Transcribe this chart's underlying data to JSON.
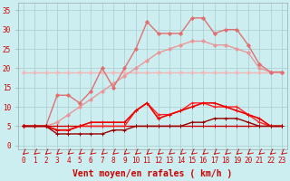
{
  "background_color": "#cceef0",
  "grid_color": "#aacccc",
  "xlabel": "Vent moyen/en rafales ( km/h )",
  "x_ticks": [
    0,
    1,
    2,
    3,
    4,
    5,
    6,
    7,
    8,
    9,
    10,
    11,
    12,
    13,
    14,
    15,
    16,
    17,
    18,
    19,
    20,
    21,
    22,
    23
  ],
  "ylim": [
    -1,
    37
  ],
  "yticks": [
    0,
    5,
    10,
    15,
    20,
    25,
    30,
    35
  ],
  "lines": [
    {
      "label": "flat_light",
      "color": "#f0b8b8",
      "lw": 1.0,
      "marker": "D",
      "ms": 2.0,
      "x": [
        0,
        1,
        2,
        3,
        4,
        5,
        6,
        7,
        8,
        9,
        10,
        11,
        12,
        13,
        14,
        15,
        16,
        17,
        18,
        19,
        20,
        21,
        22,
        23
      ],
      "y": [
        19,
        19,
        19,
        19,
        19,
        19,
        19,
        19,
        19,
        19,
        19,
        19,
        19,
        19,
        19,
        19,
        19,
        19,
        19,
        19,
        19,
        19,
        19,
        19
      ]
    },
    {
      "label": "rising_light",
      "color": "#e89898",
      "lw": 1.0,
      "marker": "D",
      "ms": 2.0,
      "x": [
        0,
        1,
        2,
        3,
        4,
        5,
        6,
        7,
        8,
        9,
        10,
        11,
        12,
        13,
        14,
        15,
        16,
        17,
        18,
        19,
        20,
        21,
        22,
        23
      ],
      "y": [
        5,
        5,
        5,
        6,
        8,
        10,
        12,
        14,
        16,
        18,
        20,
        22,
        24,
        25,
        26,
        27,
        27,
        26,
        26,
        25,
        24,
        20,
        19,
        19
      ]
    },
    {
      "label": "spiky_medium",
      "color": "#e07070",
      "lw": 1.0,
      "marker": "D",
      "ms": 2.0,
      "x": [
        0,
        1,
        2,
        3,
        4,
        5,
        6,
        7,
        8,
        9,
        10,
        11,
        12,
        13,
        14,
        15,
        16,
        17,
        18,
        19,
        20,
        21,
        22,
        23
      ],
      "y": [
        5,
        5,
        5,
        13,
        13,
        11,
        14,
        20,
        15,
        20,
        25,
        32,
        29,
        29,
        29,
        33,
        33,
        29,
        30,
        30,
        26,
        21,
        19,
        19
      ]
    },
    {
      "label": "flat_dark_red",
      "color": "#cc0000",
      "lw": 1.0,
      "marker": "+",
      "ms": 3.0,
      "x": [
        0,
        1,
        2,
        3,
        4,
        5,
        6,
        7,
        8,
        9,
        10,
        11,
        12,
        13,
        14,
        15,
        16,
        17,
        18,
        19,
        20,
        21,
        22,
        23
      ],
      "y": [
        5,
        5,
        5,
        5,
        5,
        5,
        5,
        5,
        5,
        5,
        5,
        5,
        5,
        5,
        5,
        5,
        5,
        5,
        5,
        5,
        5,
        5,
        5,
        5
      ]
    },
    {
      "label": "hump_red1",
      "color": "#ff2222",
      "lw": 1.0,
      "marker": "+",
      "ms": 3.0,
      "x": [
        0,
        1,
        2,
        3,
        4,
        5,
        6,
        7,
        8,
        9,
        10,
        11,
        12,
        13,
        14,
        15,
        16,
        17,
        18,
        19,
        20,
        21,
        22,
        23
      ],
      "y": [
        5,
        5,
        5,
        4,
        4,
        5,
        5,
        5,
        5,
        5,
        9,
        11,
        8,
        8,
        9,
        11,
        11,
        10,
        10,
        10,
        8,
        6,
        5,
        5
      ]
    },
    {
      "label": "hump_red2",
      "color": "#ee0000",
      "lw": 1.2,
      "marker": "+",
      "ms": 3.5,
      "x": [
        0,
        1,
        2,
        3,
        4,
        5,
        6,
        7,
        8,
        9,
        10,
        11,
        12,
        13,
        14,
        15,
        16,
        17,
        18,
        19,
        20,
        21,
        22,
        23
      ],
      "y": [
        5,
        5,
        5,
        4,
        4,
        5,
        6,
        6,
        6,
        6,
        9,
        11,
        7,
        8,
        9,
        10,
        11,
        11,
        10,
        9,
        8,
        7,
        5,
        5
      ]
    },
    {
      "label": "flat_very_dark",
      "color": "#990000",
      "lw": 1.0,
      "marker": "+",
      "ms": 2.5,
      "x": [
        0,
        1,
        2,
        3,
        4,
        5,
        6,
        7,
        8,
        9,
        10,
        11,
        12,
        13,
        14,
        15,
        16,
        17,
        18,
        19,
        20,
        21,
        22,
        23
      ],
      "y": [
        5,
        5,
        5,
        3,
        3,
        3,
        3,
        3,
        4,
        4,
        5,
        5,
        5,
        5,
        5,
        6,
        6,
        7,
        7,
        7,
        6,
        5,
        5,
        5
      ]
    }
  ],
  "xlabel_fontsize": 7,
  "tick_fontsize": 5.5,
  "tick_color": "#cc0000",
  "label_color": "#cc0000"
}
